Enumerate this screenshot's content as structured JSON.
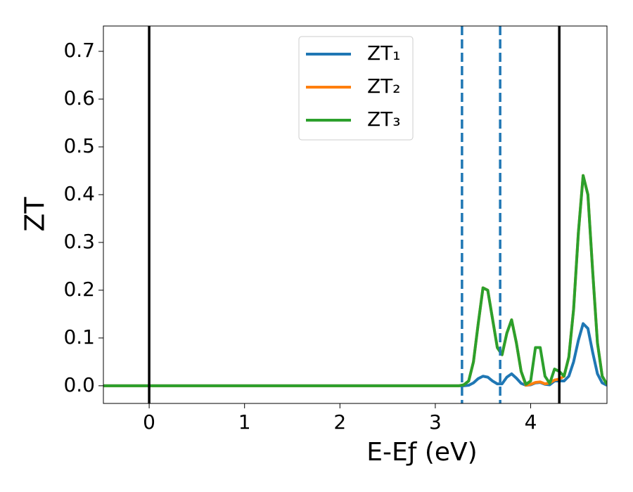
{
  "chart_data": {
    "type": "line",
    "xlabel": "E-Eƒ (eV)",
    "ylabel": "ZT",
    "x": [
      -0.48,
      3.25,
      3.3,
      3.35,
      3.4,
      3.45,
      3.5,
      3.55,
      3.6,
      3.65,
      3.7,
      3.75,
      3.8,
      3.85,
      3.9,
      3.95,
      4.0,
      4.05,
      4.1,
      4.15,
      4.2,
      4.25,
      4.3,
      4.35,
      4.4,
      4.45,
      4.5,
      4.55,
      4.6,
      4.65,
      4.7,
      4.75,
      4.8
    ],
    "series": [
      {
        "name": "ZT₁",
        "color": "#1f77b4",
        "values": [
          0,
          0,
          0,
          0.001,
          0.006,
          0.015,
          0.02,
          0.018,
          0.01,
          0.004,
          0.004,
          0.018,
          0.025,
          0.016,
          0.005,
          0.001,
          0.002,
          0.006,
          0.007,
          0.003,
          0.002,
          0.01,
          0.01,
          0.01,
          0.02,
          0.05,
          0.095,
          0.13,
          0.12,
          0.07,
          0.025,
          0.006,
          0.001
        ]
      },
      {
        "name": "ZT₂",
        "color": "#ff7f0e",
        "values": [
          0,
          0,
          0.002,
          0.01,
          0.05,
          0.13,
          0.205,
          0.2,
          0.14,
          0.08,
          0.065,
          0.11,
          0.138,
          0.09,
          0.03,
          0.001,
          0.003,
          0.007,
          0.008,
          0.004,
          0.006,
          0.012,
          0.014,
          0.02,
          0.06,
          0.16,
          0.32,
          0.44,
          0.4,
          0.24,
          0.09,
          0.02,
          0.003
        ]
      },
      {
        "name": "ZT₃",
        "color": "#2ca02c",
        "values": [
          0,
          0,
          0.002,
          0.01,
          0.05,
          0.13,
          0.205,
          0.2,
          0.14,
          0.08,
          0.065,
          0.11,
          0.138,
          0.09,
          0.03,
          0.003,
          0.01,
          0.08,
          0.08,
          0.02,
          0.005,
          0.035,
          0.03,
          0.02,
          0.06,
          0.16,
          0.32,
          0.44,
          0.4,
          0.24,
          0.09,
          0.02,
          0.003
        ]
      }
    ],
    "vlines": [
      {
        "x": 0,
        "color": "#000000",
        "style": "solid"
      },
      {
        "x": 4.3,
        "color": "#000000",
        "style": "solid"
      },
      {
        "x": 3.28,
        "color": "#1f77b4",
        "style": "dashed"
      },
      {
        "x": 3.68,
        "color": "#1f77b4",
        "style": "dashed"
      }
    ],
    "xlim": [
      -0.48,
      4.8
    ],
    "xticks": [
      0,
      1,
      2,
      3,
      4
    ],
    "ylim": [
      -0.037,
      0.753
    ],
    "yticks": [
      {
        "value": 0,
        "label": "0.0"
      },
      0.1,
      0.2,
      0.3,
      0.4,
      0.5,
      0.6,
      0.7
    ],
    "grid": false,
    "legend": "upper center"
  }
}
